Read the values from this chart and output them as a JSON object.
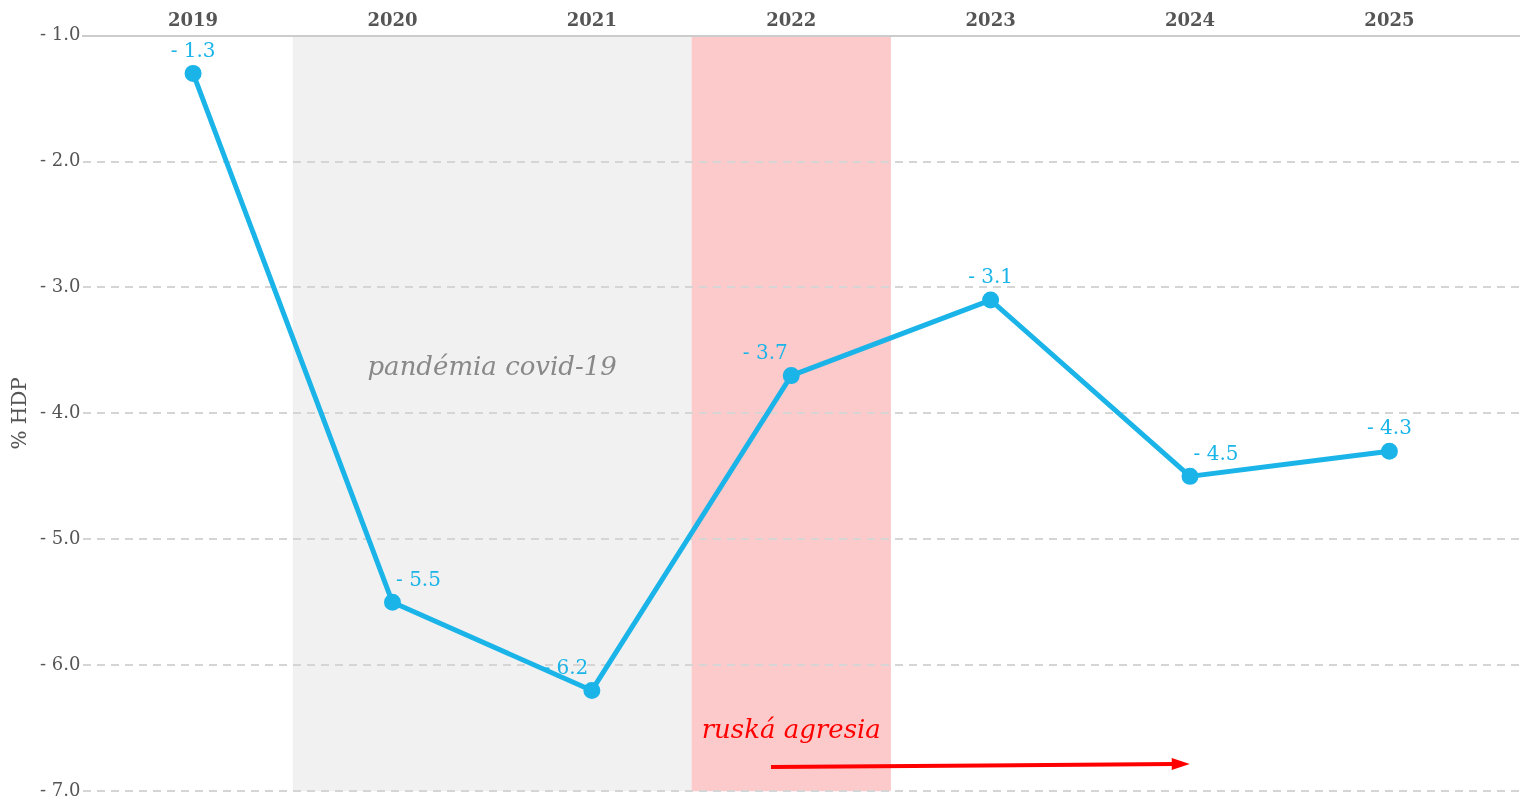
{
  "chart_data": {
    "type": "line",
    "ylabel": "% HDP",
    "categories": [
      "2019",
      "2020",
      "2021",
      "2022",
      "2023",
      "2024",
      "2025"
    ],
    "series": [
      {
        "color": "#1ab4e8",
        "values": [
          -1.3,
          -5.5,
          -6.2,
          -3.7,
          -3.1,
          -4.5,
          -4.3
        ],
        "value_labels": [
          "- 1.3",
          "- 5.5",
          "- 6.2",
          "- 3.7",
          "- 3.1",
          "- 4.5",
          "- 4.3"
        ]
      }
    ],
    "ylim": [
      -7,
      -1
    ],
    "yticks": [
      {
        "value": -1,
        "label": "- 1.0"
      },
      {
        "value": -2,
        "label": "- 2.0"
      },
      {
        "value": -3,
        "label": "- 3.0"
      },
      {
        "value": -4,
        "label": "- 4.0"
      },
      {
        "value": -5,
        "label": "- 5.0"
      },
      {
        "value": -6,
        "label": "- 6.0"
      },
      {
        "value": -7,
        "label": "- 7.0"
      }
    ],
    "grid": "y",
    "marker": "circle",
    "line_style": "solid",
    "legend": false,
    "bands": [
      {
        "axis": "x",
        "from": "2020",
        "to": "2021",
        "label": "pandémia covid-19",
        "color": "#f1f1f1"
      },
      {
        "axis": "x",
        "from": "2022",
        "to": "2022",
        "label": "ruská agresia",
        "color": "#fccaca"
      }
    ]
  }
}
